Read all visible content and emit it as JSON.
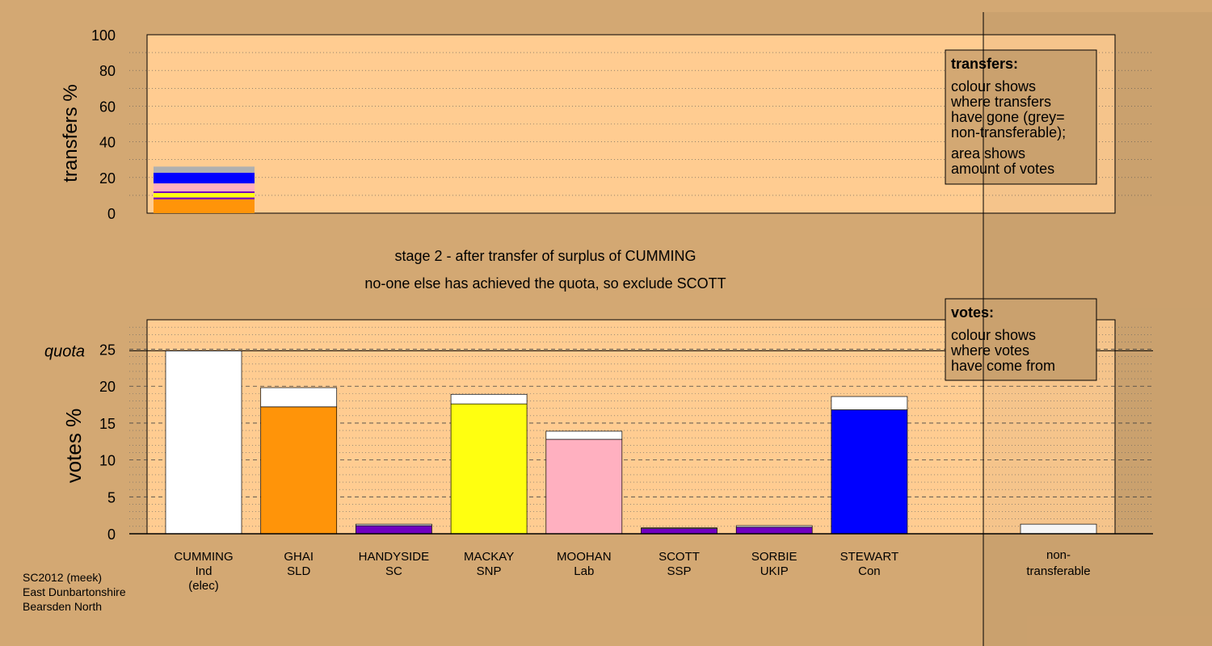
{
  "colors": {
    "page_background": "#d3a873",
    "plot_background": "#ffcc91",
    "box_fill": "#d3a873",
    "Ind": "#ffffff",
    "SLD": "#ff9409",
    "SC": "#7000c0",
    "SNP": "#ffff10",
    "Lab": "#ffb0c0",
    "SSP": "#7000c0",
    "UKIP": "#7000c0",
    "Con": "#0000ff",
    "non_transferable": "#b0b0b0",
    "received": "#ffffff"
  },
  "headings": {
    "stage": "stage 2 - after transfer of surplus of CUMMING",
    "note": "no-one else has achieved the quota, so exclude SCOTT"
  },
  "footer": {
    "line1": "SC2012 (meek)",
    "line2": "East Dunbartonshire",
    "line3": "Bearsden North"
  },
  "transfers_legend": {
    "title": "transfers:",
    "lines": [
      "colour shows",
      "where transfers",
      "have gone (grey=",
      "non-transferable);",
      "area shows",
      "amount of votes"
    ]
  },
  "votes_legend": {
    "title": "votes:",
    "lines": [
      "colour shows",
      "where votes",
      "have come from"
    ]
  },
  "chart_data": [
    {
      "type": "bar",
      "name": "transfers",
      "ylabel": "transfers %",
      "ylim": [
        0,
        100
      ],
      "yticks": [
        0,
        20,
        40,
        60,
        80,
        100
      ],
      "grid": "dotted",
      "bar_stacks": [
        {
          "from": "CUMMING",
          "segments": [
            {
              "to": "GHAI",
              "value": 7.8
            },
            {
              "to": "SORBIE",
              "value": 0.6
            },
            {
              "to": "SCOTT",
              "value": 0.4
            },
            {
              "to": "MACKAY",
              "value": 2.5
            },
            {
              "to": "HANDYSIDE",
              "value": 0.9
            },
            {
              "to": "MOOHAN",
              "value": 4.5
            },
            {
              "to": "STEWART",
              "value": 6.0
            },
            {
              "to": "non-transferable",
              "value": 3.4
            }
          ]
        }
      ]
    },
    {
      "type": "bar",
      "name": "votes",
      "ylabel": "votes %",
      "ylim": [
        0,
        29
      ],
      "yticks": [
        0,
        5,
        10,
        15,
        20,
        25
      ],
      "quota": 24.8,
      "quota_label": "quota",
      "grid": "dotted/dashed",
      "categories": [
        {
          "name": "CUMMING",
          "party": "Ind",
          "extra": "(elec)",
          "first_pref": 24.8,
          "received": 0
        },
        {
          "name": "GHAI",
          "party": "SLD",
          "extra": "",
          "first_pref": 17.2,
          "received": 2.6
        },
        {
          "name": "HANDYSIDE",
          "party": "SC",
          "extra": "",
          "first_pref": 1.1,
          "received": 0.2
        },
        {
          "name": "MACKAY",
          "party": "SNP",
          "extra": "",
          "first_pref": 17.6,
          "received": 1.3
        },
        {
          "name": "MOOHAN",
          "party": "Lab",
          "extra": "",
          "first_pref": 12.8,
          "received": 1.1
        },
        {
          "name": "SCOTT",
          "party": "SSP",
          "extra": "",
          "first_pref": 0.7,
          "received": 0.1
        },
        {
          "name": "SORBIE",
          "party": "UKIP",
          "extra": "",
          "first_pref": 0.9,
          "received": 0.2
        },
        {
          "name": "STEWART",
          "party": "Con",
          "extra": "",
          "first_pref": 16.8,
          "received": 1.8
        }
      ],
      "non_transferable": {
        "label1": "non-",
        "label2": "transferable",
        "value": 1.3
      }
    }
  ]
}
